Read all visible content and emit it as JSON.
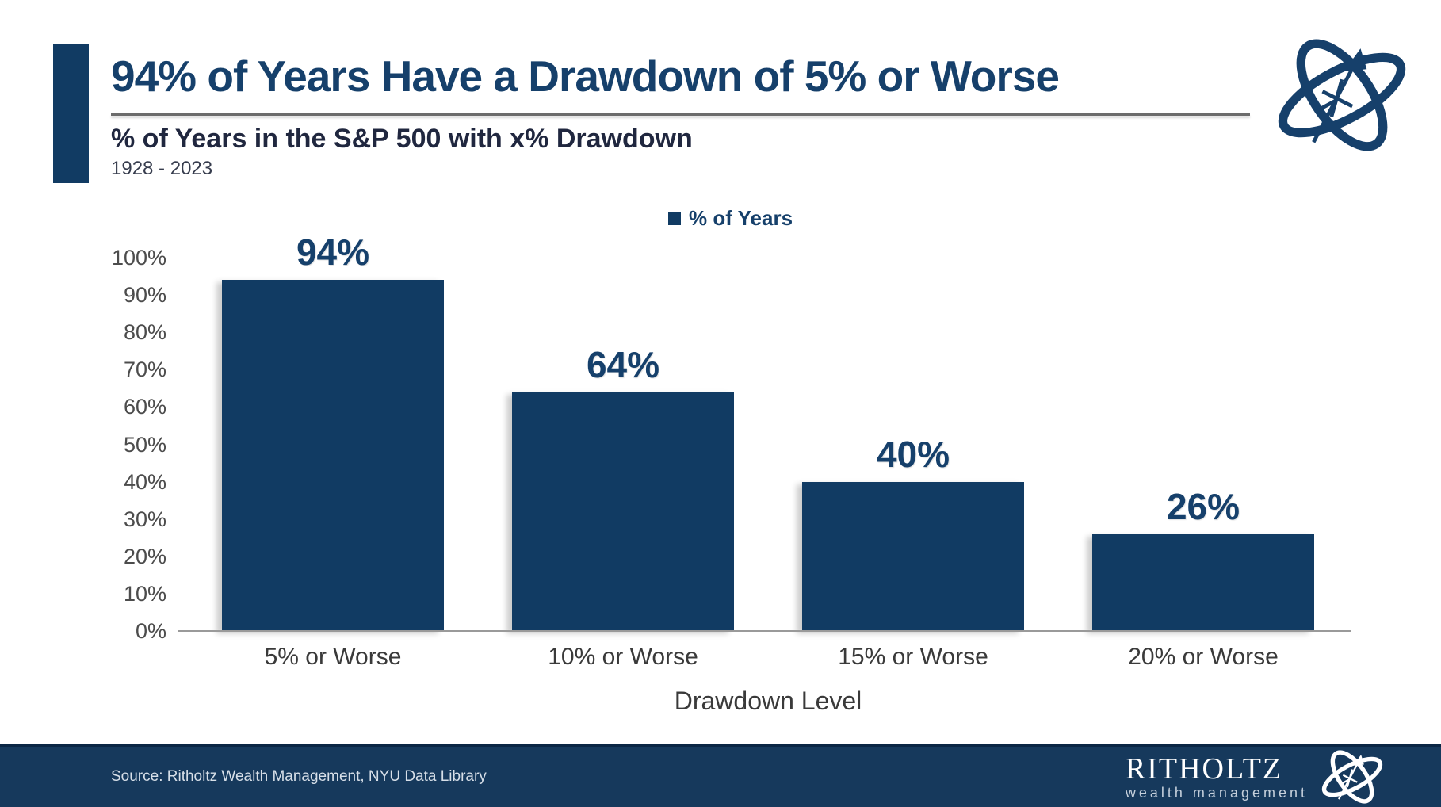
{
  "header": {
    "title": "94% of Years Have a Drawdown of 5% or Worse",
    "subtitle": "% of Years in the S&P 500 with x% Drawdown",
    "period": "1928 - 2023"
  },
  "legend": {
    "label": "% of Years"
  },
  "chart_data": {
    "type": "bar",
    "title": "% of Years in the S&P 500 with x% Drawdown",
    "series_name": "% of Years",
    "categories": [
      "5% or Worse",
      "10% or Worse",
      "15% or Worse",
      "20% or Worse"
    ],
    "values": [
      94,
      64,
      40,
      26
    ],
    "value_labels": [
      "94%",
      "64%",
      "40%",
      "26%"
    ],
    "xlabel": "Drawdown Level",
    "ylabel": "",
    "ylim": [
      0,
      100
    ],
    "ytick_step": 10,
    "ytick_labels": [
      "0%",
      "10%",
      "20%",
      "30%",
      "40%",
      "50%",
      "60%",
      "70%",
      "80%",
      "90%",
      "100%"
    ],
    "grid": false,
    "legend_position": "top-center",
    "bar_color": "#113b63"
  },
  "footer": {
    "source": "Source: Ritholtz Wealth Management, NYU Data Library",
    "brand_name": "RITHOLTZ",
    "brand_subtitle": "wealth management"
  },
  "icons": {
    "brand_logo": "gyroscope-compass"
  },
  "colors": {
    "bar_navy": "#113b63",
    "title_navy": "#16406b",
    "subtitle_dark": "#20273f",
    "rule_gray": "#6c6c6c",
    "axis_tick_gray": "#4c4c4c",
    "axis_label_gray": "#3a3a3a",
    "footer_bg": "#16395c",
    "footer_border": "#0b2644",
    "source_text": "#d7dfe8",
    "brand_sub_text": "#c4cfdb"
  }
}
